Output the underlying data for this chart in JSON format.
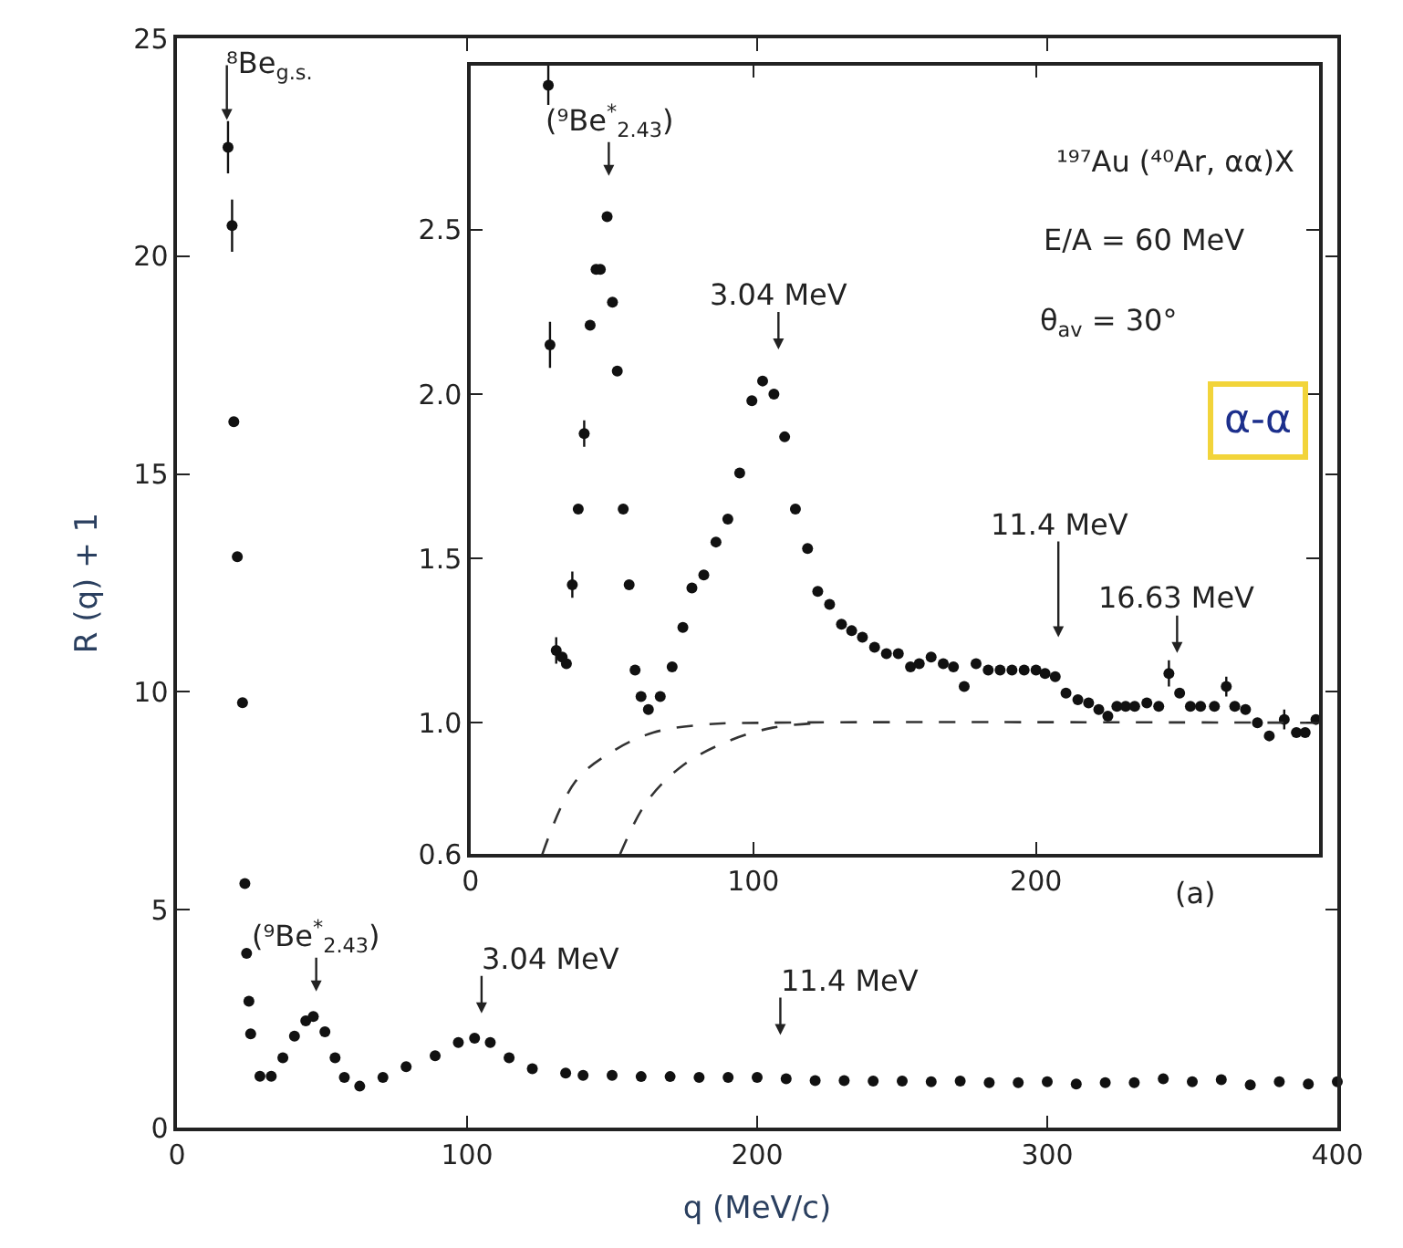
{
  "chart_data": [
    {
      "type": "scatter",
      "xlabel": "q (MeV/c)",
      "ylabel": "R (q) + 1",
      "xlim": [
        0,
        400
      ],
      "ylim": [
        0,
        25
      ],
      "xticks": [
        0,
        100,
        200,
        300,
        400
      ],
      "yticks": [
        0,
        5,
        10,
        15,
        20,
        25
      ],
      "marker": "circle",
      "series": [
        {
          "color": "#111111",
          "x": [
            17.6,
            19,
            19.6,
            20.8,
            22.6,
            23.4,
            24,
            24.8,
            25.4,
            28.6,
            32.5,
            36.5,
            40.5,
            44.4,
            47,
            51,
            54.5,
            57.7,
            63,
            71,
            79,
            89,
            97,
            102.6,
            108,
            114.5,
            122.5,
            134,
            140,
            150,
            160,
            170,
            180,
            190,
            200,
            210,
            220,
            230,
            240,
            250,
            260,
            270,
            280,
            290,
            300,
            310,
            320,
            330,
            340,
            350,
            360,
            370,
            380,
            390,
            400
          ],
          "values": [
            22.5,
            20.7,
            16.2,
            13.1,
            9.75,
            5.6,
            4.0,
            2.9,
            2.15,
            1.18,
            1.18,
            1.6,
            2.1,
            2.45,
            2.55,
            2.2,
            1.6,
            1.15,
            0.95,
            1.15,
            1.4,
            1.65,
            1.95,
            2.05,
            1.95,
            1.6,
            1.35,
            1.25,
            1.2,
            1.2,
            1.17,
            1.17,
            1.15,
            1.15,
            1.15,
            1.12,
            1.08,
            1.08,
            1.07,
            1.07,
            1.05,
            1.07,
            1.03,
            1.03,
            1.05,
            1.0,
            1.03,
            1.03,
            1.12,
            1.05,
            1.1,
            0.98,
            1.05,
            1.0,
            1.05
          ],
          "errors": [
            0.6,
            0.6,
            null,
            null,
            null,
            null,
            null,
            null,
            null,
            null,
            null,
            null,
            null,
            null,
            null,
            null,
            null,
            null,
            null,
            null,
            null,
            null,
            null,
            null,
            null,
            null,
            null,
            null,
            null,
            null,
            null,
            null,
            null,
            null,
            null,
            null,
            null,
            null,
            null,
            null,
            null,
            null,
            null,
            null,
            null,
            null,
            null,
            null,
            null,
            null,
            null,
            null,
            null,
            null,
            null
          ]
        }
      ],
      "annotations": [
        "⁸Be$_{g.s.}$",
        "(⁹Be$^{*}$$_{2.43}$)",
        "3.04 MeV",
        "11.4 MeV",
        "(a)"
      ]
    },
    {
      "type": "scatter",
      "xlim": [
        0,
        300
      ],
      "ylim": [
        0.6,
        3.0
      ],
      "xticks": [
        0,
        100,
        200
      ],
      "yticks": [
        0.6,
        {
          "value": 1,
          "label": "1.0"
        },
        1.5,
        {
          "value": 2,
          "label": "2.0"
        },
        2.5
      ],
      "marker": "circle",
      "series": [
        {
          "color": "#111111",
          "x": [
            27.5,
            28.1,
            30.3,
            32.4,
            33.9,
            36,
            38.1,
            40.2,
            42.3,
            44.4,
            45.9,
            48.3,
            50.2,
            51.9,
            54,
            56.1,
            58.2,
            60.3,
            62.9,
            67.1,
            71.3,
            75.1,
            78.3,
            82.5,
            86.8,
            91,
            95.2,
            99.5,
            103.3,
            107.3,
            111.1,
            114.9,
            119.2,
            122.8,
            127,
            131.2,
            134.8,
            138.6,
            142.9,
            147.1,
            151.3,
            155.6,
            158.7,
            162.9,
            167.2,
            170.8,
            174.6,
            178.8,
            183.1,
            187.3,
            191.5,
            195.8,
            200,
            203.2,
            206.8,
            210.6,
            214.8,
            218.6,
            222.2,
            225.4,
            228.6,
            231.7,
            234.9,
            239.2,
            243.4,
            247,
            250.8,
            254.6,
            258.2,
            263.1,
            267.3,
            270.3,
            274.1,
            278.3,
            282.5,
            287.8,
            292.1,
            295.2,
            299
          ],
          "values": [
            2.94,
            2.15,
            1.22,
            1.2,
            1.18,
            1.42,
            1.65,
            1.88,
            2.21,
            2.38,
            2.38,
            2.54,
            2.28,
            2.07,
            1.65,
            1.42,
            1.16,
            1.08,
            1.04,
            1.08,
            1.17,
            1.29,
            1.41,
            1.45,
            1.55,
            1.62,
            1.76,
            1.98,
            2.04,
            2.0,
            1.87,
            1.65,
            1.53,
            1.4,
            1.36,
            1.3,
            1.28,
            1.26,
            1.23,
            1.21,
            1.21,
            1.17,
            1.18,
            1.2,
            1.18,
            1.17,
            1.11,
            1.18,
            1.16,
            1.16,
            1.16,
            1.16,
            1.16,
            1.15,
            1.14,
            1.09,
            1.07,
            1.06,
            1.04,
            1.02,
            1.05,
            1.05,
            1.05,
            1.06,
            1.05,
            1.15,
            1.09,
            1.05,
            1.05,
            1.05,
            1.11,
            1.05,
            1.04,
            1.0,
            0.96,
            1.01,
            0.97,
            0.97,
            1.01
          ],
          "errors": [
            0.06,
            0.07,
            0.04,
            null,
            null,
            0.04,
            null,
            0.04,
            null,
            null,
            null,
            null,
            null,
            null,
            null,
            null,
            null,
            null,
            null,
            null,
            null,
            null,
            null,
            null,
            null,
            null,
            null,
            null,
            null,
            null,
            null,
            null,
            null,
            null,
            null,
            null,
            null,
            null,
            null,
            null,
            null,
            null,
            null,
            null,
            null,
            null,
            null,
            null,
            null,
            null,
            null,
            null,
            null,
            null,
            null,
            null,
            null,
            null,
            null,
            null,
            null,
            null,
            null,
            null,
            null,
            0.04,
            null,
            null,
            null,
            null,
            0.03,
            null,
            null,
            null,
            null,
            0.03,
            null,
            null,
            null
          ]
        },
        {
          "type": "line",
          "line_style": "dashed",
          "marker": "none",
          "color": "#333333",
          "x": [
            25.4,
            37,
            49.7,
            64.6,
            83.6,
            105,
            300
          ],
          "values": [
            0.6,
            0.82,
            0.91,
            0.97,
            0.995,
            1.0,
            1.0
          ]
        },
        {
          "type": "line",
          "line_style": "dashed",
          "marker": "none",
          "color": "#333333",
          "x": [
            52.9,
            62.4,
            75.1,
            90,
            106.9,
            126
          ],
          "values": [
            0.6,
            0.76,
            0.87,
            0.94,
            0.985,
            1.0
          ]
        }
      ],
      "annotations": [
        "(⁹Be$^{*}$$_{2.43}$)",
        "3.04 MeV",
        "11.4 MeV",
        "16.63 MeV",
        "¹⁹⁷Au (⁴⁰Ar, αα)X",
        "E/A = 60 MeV",
        "θ$_{av}$ = 30°",
        "α-α"
      ]
    }
  ]
}
